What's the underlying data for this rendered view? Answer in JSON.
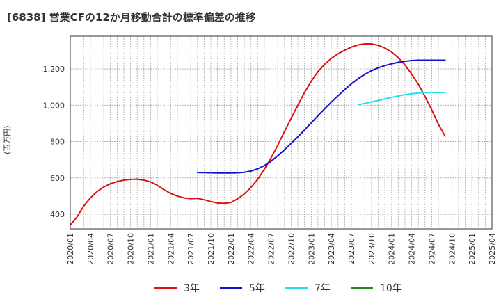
{
  "chart_data": {
    "type": "line",
    "title": "[6838]  営業CFの12か月移動合計の標準偏差の推移",
    "ylabel": "(百万円)",
    "xlabel": "",
    "x_ticks": [
      "2020/01",
      "2020/04",
      "2020/07",
      "2020/10",
      "2021/01",
      "2021/04",
      "2021/07",
      "2021/10",
      "2022/01",
      "2022/04",
      "2022/07",
      "2022/10",
      "2023/01",
      "2023/04",
      "2023/07",
      "2023/10",
      "2024/01",
      "2024/04",
      "2024/07",
      "2024/10",
      "2025/01",
      "2025/04"
    ],
    "y_ticks": [
      400,
      600,
      800,
      1000,
      1200
    ],
    "ylim": [
      320,
      1380
    ],
    "grid": true,
    "legend_position": "bottom",
    "series": [
      {
        "name": "3年",
        "color": "#dd1111",
        "points": [
          [
            "2020/01",
            340
          ],
          [
            "2020/02",
            385
          ],
          [
            "2020/03",
            445
          ],
          [
            "2020/04",
            490
          ],
          [
            "2020/05",
            525
          ],
          [
            "2020/06",
            550
          ],
          [
            "2020/07",
            568
          ],
          [
            "2020/08",
            580
          ],
          [
            "2020/09",
            588
          ],
          [
            "2020/10",
            592
          ],
          [
            "2020/11",
            593
          ],
          [
            "2020/12",
            588
          ],
          [
            "2021/01",
            578
          ],
          [
            "2021/02",
            560
          ],
          [
            "2021/03",
            535
          ],
          [
            "2021/04",
            515
          ],
          [
            "2021/05",
            500
          ],
          [
            "2021/06",
            490
          ],
          [
            "2021/07",
            486
          ],
          [
            "2021/08",
            488
          ],
          [
            "2021/09",
            480
          ],
          [
            "2021/10",
            470
          ],
          [
            "2021/11",
            462
          ],
          [
            "2021/12",
            460
          ],
          [
            "2022/01",
            465
          ],
          [
            "2022/02",
            485
          ],
          [
            "2022/03",
            512
          ],
          [
            "2022/04",
            548
          ],
          [
            "2022/05",
            592
          ],
          [
            "2022/06",
            648
          ],
          [
            "2022/07",
            710
          ],
          [
            "2022/08",
            780
          ],
          [
            "2022/09",
            855
          ],
          [
            "2022/10",
            928
          ],
          [
            "2022/11",
            1000
          ],
          [
            "2022/12",
            1070
          ],
          [
            "2023/01",
            1132
          ],
          [
            "2023/02",
            1185
          ],
          [
            "2023/03",
            1225
          ],
          [
            "2023/04",
            1258
          ],
          [
            "2023/05",
            1283
          ],
          [
            "2023/06",
            1303
          ],
          [
            "2023/07",
            1320
          ],
          [
            "2023/08",
            1332
          ],
          [
            "2023/09",
            1338
          ],
          [
            "2023/10",
            1338
          ],
          [
            "2023/11",
            1330
          ],
          [
            "2023/12",
            1315
          ],
          [
            "2024/01",
            1293
          ],
          [
            "2024/02",
            1262
          ],
          [
            "2024/03",
            1222
          ],
          [
            "2024/04",
            1172
          ],
          [
            "2024/05",
            1115
          ],
          [
            "2024/06",
            1048
          ],
          [
            "2024/07",
            975
          ],
          [
            "2024/08",
            895
          ],
          [
            "2024/09",
            830
          ]
        ]
      },
      {
        "name": "5年",
        "color": "#1111cc",
        "points": [
          [
            "2021/08",
            630
          ],
          [
            "2021/09",
            629
          ],
          [
            "2021/10",
            628
          ],
          [
            "2021/11",
            627
          ],
          [
            "2021/12",
            627
          ],
          [
            "2022/01",
            627
          ],
          [
            "2022/02",
            628
          ],
          [
            "2022/03",
            631
          ],
          [
            "2022/04",
            638
          ],
          [
            "2022/05",
            650
          ],
          [
            "2022/06",
            668
          ],
          [
            "2022/07",
            692
          ],
          [
            "2022/08",
            722
          ],
          [
            "2022/09",
            755
          ],
          [
            "2022/10",
            790
          ],
          [
            "2022/11",
            826
          ],
          [
            "2022/12",
            864
          ],
          [
            "2023/01",
            903
          ],
          [
            "2023/02",
            942
          ],
          [
            "2023/03",
            980
          ],
          [
            "2023/04",
            1017
          ],
          [
            "2023/05",
            1052
          ],
          [
            "2023/06",
            1086
          ],
          [
            "2023/07",
            1118
          ],
          [
            "2023/08",
            1146
          ],
          [
            "2023/09",
            1170
          ],
          [
            "2023/10",
            1190
          ],
          [
            "2023/11",
            1206
          ],
          [
            "2023/12",
            1218
          ],
          [
            "2024/01",
            1228
          ],
          [
            "2024/02",
            1236
          ],
          [
            "2024/03",
            1242
          ],
          [
            "2024/04",
            1246
          ],
          [
            "2024/05",
            1248
          ],
          [
            "2024/06",
            1248
          ],
          [
            "2024/07",
            1248
          ],
          [
            "2024/08",
            1248
          ],
          [
            "2024/09",
            1248
          ]
        ]
      },
      {
        "name": "7年",
        "color": "#22e0e8",
        "points": [
          [
            "2023/08",
            1002
          ],
          [
            "2023/09",
            1010
          ],
          [
            "2023/10",
            1018
          ],
          [
            "2023/11",
            1026
          ],
          [
            "2023/12",
            1035
          ],
          [
            "2024/01",
            1043
          ],
          [
            "2024/02",
            1051
          ],
          [
            "2024/03",
            1058
          ],
          [
            "2024/04",
            1063
          ],
          [
            "2024/05",
            1067
          ],
          [
            "2024/06",
            1069
          ],
          [
            "2024/07",
            1070
          ],
          [
            "2024/08",
            1070
          ],
          [
            "2024/09",
            1070
          ]
        ]
      },
      {
        "name": "10年",
        "color": "#228822",
        "points": []
      }
    ]
  }
}
